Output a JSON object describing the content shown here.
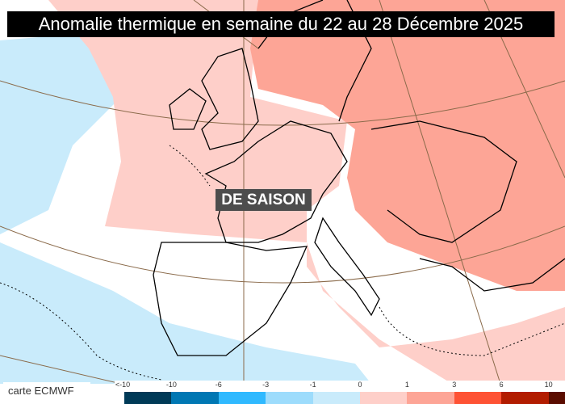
{
  "title": "Anomalie thermique en semaine du 22 au 28 Décembre 2025",
  "map_label": "DE SAISON",
  "credit": "carte ECMWF",
  "legend": {
    "labels": [
      "<-10",
      "-10",
      "-6",
      "-3",
      "-1",
      "0",
      "1",
      "3",
      "6",
      "10"
    ],
    "colors": [
      "#003a57",
      "#0077b3",
      "#2fb9ff",
      "#9ddcfc",
      "#c9ebfb",
      "#fecfc9",
      "#fda596",
      "#fe5234",
      "#b21c00",
      "#5a0c00"
    ]
  },
  "region_colors": {
    "neutral": "#ffffff",
    "slightly_cold": "#c9ebfb",
    "slightly_warm": "#fecfc9",
    "warm": "#fda596"
  }
}
